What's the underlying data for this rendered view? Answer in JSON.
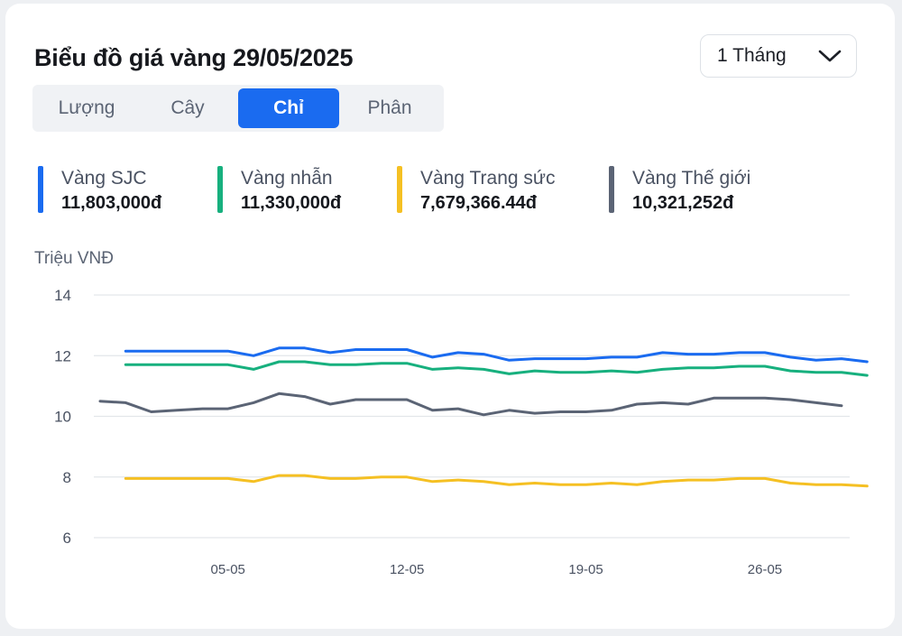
{
  "title": "Biểu đồ giá vàng 29/05/2025",
  "period": {
    "label": "1 Tháng"
  },
  "tabs": [
    {
      "label": "Lượng",
      "active": false
    },
    {
      "label": "Cây",
      "active": false
    },
    {
      "label": "Chỉ",
      "active": true
    },
    {
      "label": "Phân",
      "active": false
    }
  ],
  "legend": [
    {
      "name": "Vàng SJC",
      "value": "11,803,000đ",
      "color": "#1a6bf0"
    },
    {
      "name": "Vàng nhẫn",
      "value": "11,330,000đ",
      "color": "#17b07e"
    },
    {
      "name": "Vàng Trang sức",
      "value": "7,679,366.44đ",
      "color": "#f5c023"
    },
    {
      "name": "Vàng Thế giới",
      "value": "10,321,252đ",
      "color": "#5b6475"
    }
  ],
  "icons": {
    "period_toggle": "chevron-down-icon"
  },
  "chart_data": {
    "type": "line",
    "ylabel": "Triệu VNĐ",
    "ylim": [
      6,
      14
    ],
    "yticks": [
      6,
      8,
      10,
      12,
      14
    ],
    "grid": true,
    "x": [
      "30-04",
      "01-05",
      "02-05",
      "03-05",
      "04-05",
      "05-05",
      "06-05",
      "07-05",
      "08-05",
      "09-05",
      "10-05",
      "11-05",
      "12-05",
      "13-05",
      "14-05",
      "15-05",
      "16-05",
      "17-05",
      "18-05",
      "19-05",
      "20-05",
      "21-05",
      "22-05",
      "23-05",
      "24-05",
      "25-05",
      "26-05",
      "27-05",
      "28-05",
      "29-05"
    ],
    "xticks": [
      "05-05",
      "12-05",
      "19-05",
      "26-05"
    ],
    "series": [
      {
        "name": "Vàng SJC",
        "color": "#1a6bf0",
        "x_start": "01-05",
        "values": [
          12.15,
          12.15,
          12.15,
          12.15,
          12.15,
          12.0,
          12.25,
          12.25,
          12.1,
          12.2,
          12.2,
          12.2,
          11.95,
          12.1,
          12.05,
          11.85,
          11.9,
          11.9,
          11.9,
          11.95,
          11.95,
          12.1,
          12.05,
          12.05,
          12.1,
          12.1,
          11.95,
          11.85,
          11.9,
          11.8
        ]
      },
      {
        "name": "Vàng nhẫn",
        "color": "#17b07e",
        "x_start": "01-05",
        "values": [
          11.7,
          11.7,
          11.7,
          11.7,
          11.7,
          11.55,
          11.8,
          11.8,
          11.7,
          11.7,
          11.75,
          11.75,
          11.55,
          11.6,
          11.55,
          11.4,
          11.5,
          11.45,
          11.45,
          11.5,
          11.45,
          11.55,
          11.6,
          11.6,
          11.65,
          11.65,
          11.5,
          11.45,
          11.45,
          11.35
        ]
      },
      {
        "name": "Vàng Trang sức",
        "color": "#f5c023",
        "x_start": "01-05",
        "values": [
          7.95,
          7.95,
          7.95,
          7.95,
          7.95,
          7.85,
          8.05,
          8.05,
          7.95,
          7.95,
          8.0,
          8.0,
          7.85,
          7.9,
          7.85,
          7.75,
          7.8,
          7.75,
          7.75,
          7.8,
          7.75,
          7.85,
          7.9,
          7.9,
          7.95,
          7.95,
          7.8,
          7.75,
          7.75,
          7.7
        ]
      },
      {
        "name": "Vàng Thế giới",
        "color": "#5b6475",
        "x_start": "30-04",
        "values": [
          10.5,
          10.45,
          10.15,
          10.2,
          10.25,
          10.25,
          10.45,
          10.75,
          10.65,
          10.4,
          10.55,
          10.55,
          10.55,
          10.2,
          10.25,
          10.05,
          10.2,
          10.1,
          10.15,
          10.15,
          10.2,
          10.4,
          10.45,
          10.4,
          10.6,
          10.6,
          10.6,
          10.55,
          10.45,
          10.35
        ]
      }
    ]
  }
}
